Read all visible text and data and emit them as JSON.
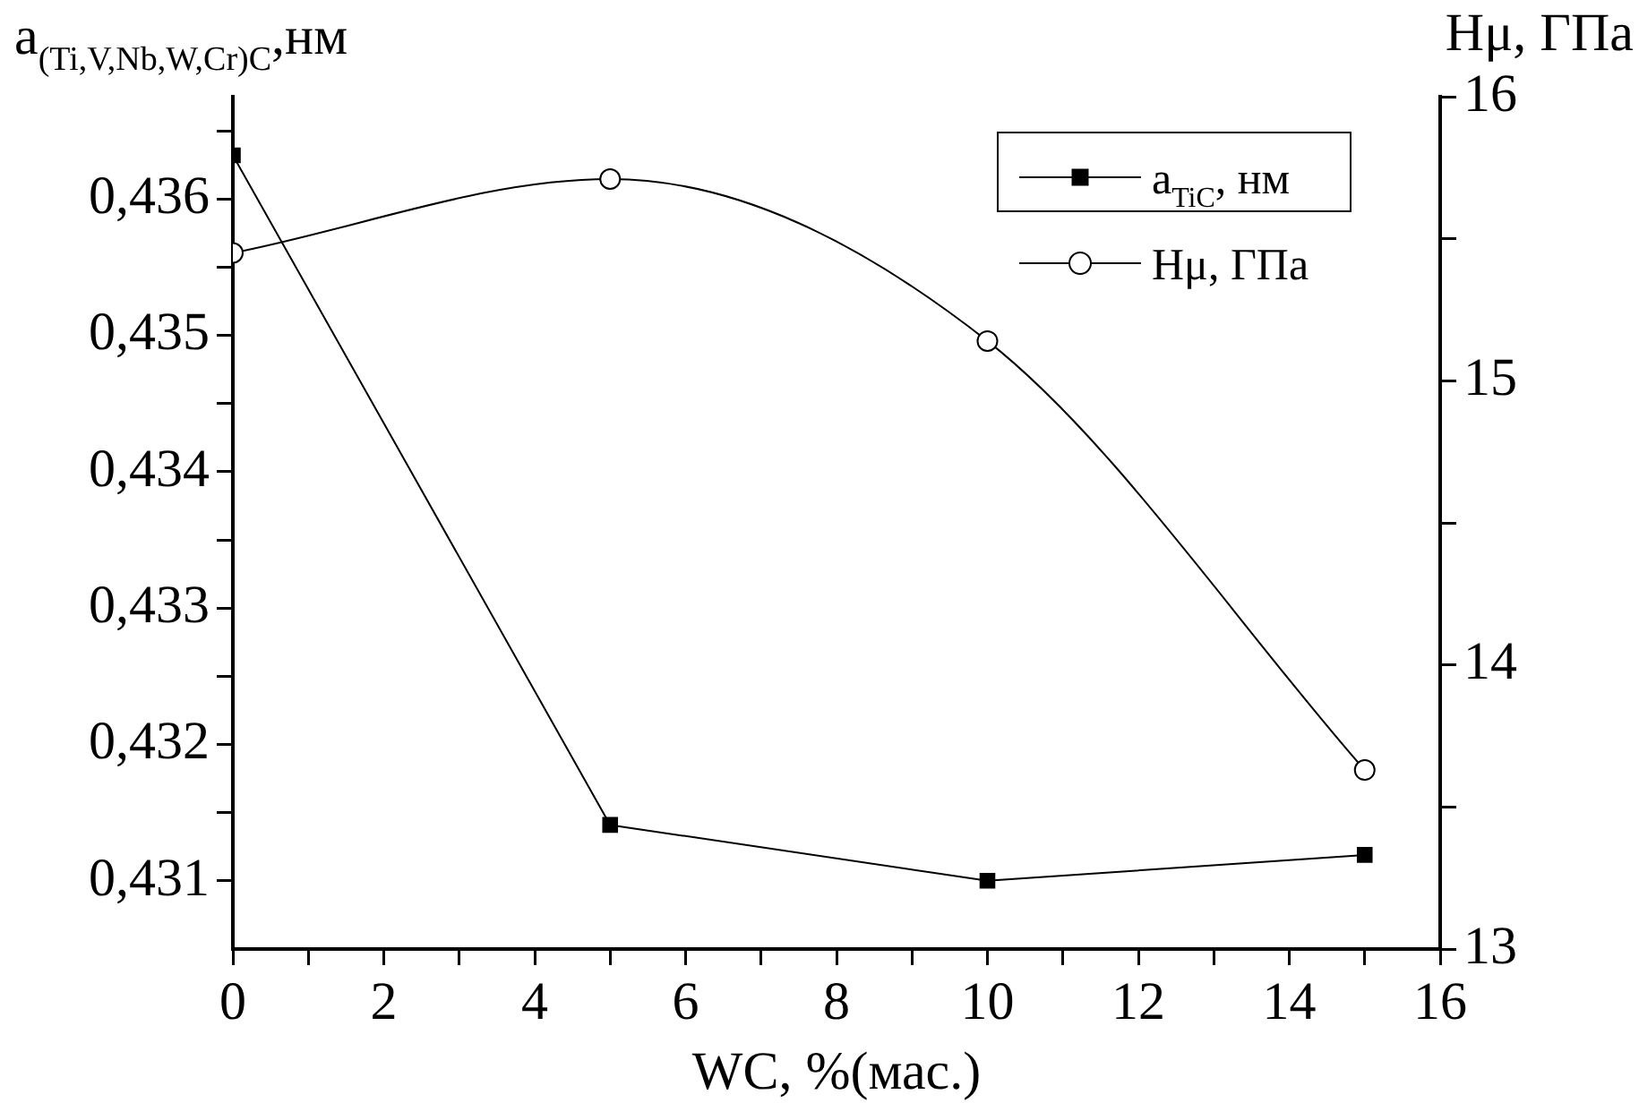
{
  "chart_data": {
    "type": "line",
    "xlabel": "WC, %(мас.)",
    "ylabel": "a$_{(Ti,V,Nb,W,Cr)C}$,нм",
    "y2label": "Hμ, ГПа",
    "x": [
      0,
      5,
      10,
      15
    ],
    "series": [
      {
        "name": "a$_{TiC}$, нм",
        "color": "#000000",
        "marker": "square",
        "values": [
          0.43632,
          0.43141,
          0.431,
          0.43119
        ]
      },
      {
        "name": "Hμ, ГПа",
        "color": "#000000",
        "marker": "circle",
        "axis": "y2",
        "values": [
          15.45,
          15.71,
          15.14,
          13.63
        ]
      }
    ],
    "xlim": [
      0,
      16
    ],
    "xticks": [
      0,
      {
        "value": 1,
        "label": null
      },
      2,
      {
        "value": 3,
        "label": null
      },
      4,
      {
        "value": 5,
        "label": null
      },
      6,
      {
        "value": 7,
        "label": null
      },
      8,
      {
        "value": 9,
        "label": null
      },
      10,
      {
        "value": 11,
        "label": null
      },
      12,
      {
        "value": 13,
        "label": null
      },
      14,
      {
        "value": 15,
        "label": null
      },
      16
    ],
    "ylim": [
      0.4305,
      0.43675
    ],
    "yticks": [
      {
        "value": 0.431,
        "label": "0,431"
      },
      {
        "value": 0.4315,
        "label": null
      },
      {
        "value": 0.432,
        "label": "0,432"
      },
      {
        "value": 0.4325,
        "label": null
      },
      {
        "value": 0.433,
        "label": "0,433"
      },
      {
        "value": 0.4335,
        "label": null
      },
      {
        "value": 0.434,
        "label": "0,434"
      },
      {
        "value": 0.4345,
        "label": null
      },
      {
        "value": 0.435,
        "label": "0,435"
      },
      {
        "value": 0.4355,
        "label": null
      },
      {
        "value": 0.436,
        "label": "0,436"
      },
      {
        "value": 0.4365,
        "label": null
      }
    ],
    "y2lim": [
      13,
      16
    ],
    "y2ticks": [
      13,
      {
        "value": 13.5,
        "label": null
      },
      14,
      {
        "value": 14.5,
        "label": null
      },
      15,
      {
        "value": 15.5,
        "label": null
      },
      16
    ],
    "legend": "top right",
    "grid": false
  }
}
